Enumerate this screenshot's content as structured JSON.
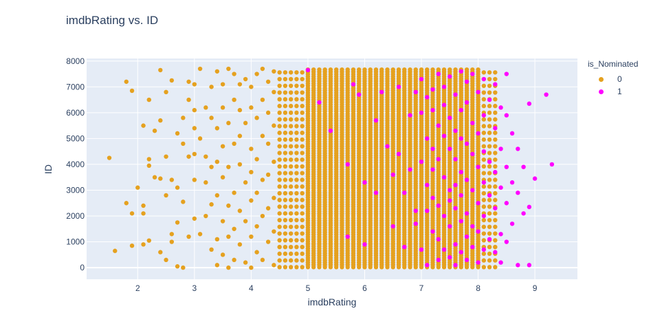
{
  "chart_data": {
    "type": "scatter",
    "title": "imdbRating vs. ID",
    "xlabel": "imdbRating",
    "ylabel": "ID",
    "xlim": [
      1.1,
      9.75
    ],
    "ylim": [
      -450,
      8100
    ],
    "x_ticks": [
      2,
      3,
      4,
      5,
      6,
      7,
      8,
      9
    ],
    "y_ticks": [
      0,
      1000,
      2000,
      3000,
      4000,
      5000,
      6000,
      7000,
      8000
    ],
    "grid": true,
    "legend_title": "is_Nominated",
    "legend_position": "top-right",
    "series": [
      {
        "name": "0",
        "color": "#E5A11F",
        "note_points": "dense band 4.5-8.3 plus sparse low-rating points",
        "points": [
          [
            1.5,
            4250
          ],
          [
            1.6,
            650
          ],
          [
            1.8,
            2500
          ],
          [
            1.8,
            7200
          ],
          [
            1.9,
            6850
          ],
          [
            1.9,
            2100
          ],
          [
            1.9,
            850
          ],
          [
            2.0,
            3100
          ],
          [
            2.1,
            5500
          ],
          [
            2.1,
            2400
          ],
          [
            2.1,
            2100
          ],
          [
            2.1,
            900
          ],
          [
            2.2,
            4200
          ],
          [
            2.2,
            3950
          ],
          [
            2.2,
            1050
          ],
          [
            2.2,
            6500
          ],
          [
            2.3,
            5300
          ],
          [
            2.3,
            3500
          ],
          [
            2.4,
            7650
          ],
          [
            2.4,
            5700
          ],
          [
            2.4,
            3450
          ],
          [
            2.4,
            600
          ],
          [
            2.5,
            6800
          ],
          [
            2.5,
            4300
          ],
          [
            2.5,
            2800
          ],
          [
            2.5,
            300
          ],
          [
            2.6,
            7250
          ],
          [
            2.6,
            3400
          ],
          [
            2.6,
            1300
          ],
          [
            2.6,
            1000
          ],
          [
            2.7,
            5200
          ],
          [
            2.7,
            3100
          ],
          [
            2.7,
            1750
          ],
          [
            2.7,
            50
          ],
          [
            2.8,
            5800
          ],
          [
            2.8,
            4800
          ],
          [
            2.8,
            2550
          ],
          [
            2.8,
            0
          ],
          [
            2.9,
            7200
          ],
          [
            2.9,
            6500
          ],
          [
            2.9,
            4300
          ],
          [
            2.9,
            1200
          ],
          [
            3.0,
            7100
          ],
          [
            3.0,
            6100
          ],
          [
            3.0,
            5400
          ],
          [
            3.0,
            4400
          ],
          [
            3.0,
            3400
          ],
          [
            3.0,
            1900
          ],
          [
            3.1,
            7700
          ],
          [
            3.1,
            5000
          ],
          [
            3.1,
            1300
          ],
          [
            3.2,
            6200
          ],
          [
            3.2,
            4300
          ],
          [
            3.2,
            3300
          ],
          [
            3.2,
            2000
          ],
          [
            3.3,
            7000
          ],
          [
            3.3,
            5800
          ],
          [
            3.3,
            3900
          ],
          [
            3.3,
            2450
          ],
          [
            3.3,
            700
          ],
          [
            3.4,
            7600
          ],
          [
            3.4,
            5400
          ],
          [
            3.4,
            4100
          ],
          [
            3.4,
            2800
          ],
          [
            3.4,
            1100
          ],
          [
            3.4,
            100
          ],
          [
            3.5,
            7100
          ],
          [
            3.5,
            6200
          ],
          [
            3.5,
            4700
          ],
          [
            3.5,
            3500
          ],
          [
            3.5,
            1800
          ],
          [
            3.5,
            500
          ],
          [
            3.6,
            7700
          ],
          [
            3.6,
            5600
          ],
          [
            3.6,
            3900
          ],
          [
            3.6,
            2400
          ],
          [
            3.6,
            1200
          ],
          [
            3.6,
            0
          ],
          [
            3.7,
            7500
          ],
          [
            3.7,
            6500
          ],
          [
            3.7,
            4800
          ],
          [
            3.7,
            2900
          ],
          [
            3.7,
            1500
          ],
          [
            3.7,
            300
          ],
          [
            3.8,
            7100
          ],
          [
            3.8,
            6100
          ],
          [
            3.8,
            5100
          ],
          [
            3.8,
            4000
          ],
          [
            3.8,
            2200
          ],
          [
            3.8,
            900
          ],
          [
            3.9,
            7300
          ],
          [
            3.9,
            5600
          ],
          [
            3.9,
            3300
          ],
          [
            3.9,
            1800
          ],
          [
            3.9,
            200
          ],
          [
            4.0,
            7000
          ],
          [
            4.0,
            6200
          ],
          [
            4.0,
            4600
          ],
          [
            4.0,
            3700
          ],
          [
            4.0,
            2600
          ],
          [
            4.0,
            1200
          ],
          [
            4.0,
            0
          ],
          [
            4.1,
            7500
          ],
          [
            4.1,
            5800
          ],
          [
            4.1,
            4200
          ],
          [
            4.1,
            2900
          ],
          [
            4.1,
            1600
          ],
          [
            4.1,
            600
          ],
          [
            4.2,
            7700
          ],
          [
            4.2,
            6500
          ],
          [
            4.2,
            5100
          ],
          [
            4.2,
            3400
          ],
          [
            4.2,
            2000
          ],
          [
            4.2,
            300
          ],
          [
            4.3,
            7200
          ],
          [
            4.3,
            6000
          ],
          [
            4.3,
            4800
          ],
          [
            4.3,
            3600
          ],
          [
            4.3,
            2300
          ],
          [
            4.3,
            1000
          ],
          [
            4.4,
            7600
          ],
          [
            4.4,
            6800
          ],
          [
            4.4,
            5500
          ],
          [
            4.4,
            4100
          ],
          [
            4.4,
            2700
          ],
          [
            4.4,
            1400
          ],
          [
            4.4,
            100
          ]
        ]
      },
      {
        "name": "1",
        "color": "#FF00FF",
        "points": [
          [
            5.0,
            7650
          ],
          [
            5.2,
            6400
          ],
          [
            5.4,
            5300
          ],
          [
            5.7,
            4000
          ],
          [
            5.7,
            1200
          ],
          [
            5.8,
            7100
          ],
          [
            5.9,
            6700
          ],
          [
            6.0,
            900
          ],
          [
            6.0,
            3300
          ],
          [
            6.2,
            5700
          ],
          [
            6.2,
            2900
          ],
          [
            6.3,
            6800
          ],
          [
            6.4,
            4700
          ],
          [
            6.5,
            3600
          ],
          [
            6.5,
            1600
          ],
          [
            6.6,
            7000
          ],
          [
            6.6,
            4400
          ],
          [
            6.7,
            2900
          ],
          [
            6.7,
            800
          ],
          [
            6.8,
            5900
          ],
          [
            6.8,
            3800
          ],
          [
            6.9,
            6800
          ],
          [
            6.9,
            2200
          ],
          [
            6.9,
            1700
          ],
          [
            7.0,
            7300
          ],
          [
            7.0,
            6000
          ],
          [
            7.0,
            4100
          ],
          [
            7.0,
            700
          ],
          [
            7.1,
            6600
          ],
          [
            7.1,
            5000
          ],
          [
            7.1,
            3200
          ],
          [
            7.1,
            2200
          ],
          [
            7.1,
            100
          ],
          [
            7.2,
            6900
          ],
          [
            7.2,
            6100
          ],
          [
            7.2,
            4600
          ],
          [
            7.2,
            3800
          ],
          [
            7.2,
            2700
          ],
          [
            7.2,
            1400
          ],
          [
            7.3,
            7500
          ],
          [
            7.3,
            5500
          ],
          [
            7.3,
            4200
          ],
          [
            7.3,
            2400
          ],
          [
            7.3,
            1100
          ],
          [
            7.3,
            300
          ],
          [
            7.4,
            7000
          ],
          [
            7.4,
            6300
          ],
          [
            7.4,
            5100
          ],
          [
            7.4,
            3500
          ],
          [
            7.4,
            2000
          ],
          [
            7.4,
            700
          ],
          [
            7.5,
            7400
          ],
          [
            7.5,
            5800
          ],
          [
            7.5,
            4600
          ],
          [
            7.5,
            3000
          ],
          [
            7.5,
            2600
          ],
          [
            7.5,
            1600
          ],
          [
            7.5,
            400
          ],
          [
            7.6,
            6700
          ],
          [
            7.6,
            5300
          ],
          [
            7.6,
            4200
          ],
          [
            7.6,
            3200
          ],
          [
            7.6,
            2300
          ],
          [
            7.6,
            900
          ],
          [
            7.6,
            100
          ],
          [
            7.7,
            7600
          ],
          [
            7.7,
            6100
          ],
          [
            7.7,
            5000
          ],
          [
            7.7,
            3700
          ],
          [
            7.7,
            2800
          ],
          [
            7.7,
            1800
          ],
          [
            7.7,
            600
          ],
          [
            7.8,
            7200
          ],
          [
            7.8,
            6400
          ],
          [
            7.8,
            4800
          ],
          [
            7.8,
            3400
          ],
          [
            7.8,
            2100
          ],
          [
            7.8,
            1200
          ],
          [
            7.8,
            300
          ],
          [
            7.9,
            7500
          ],
          [
            7.9,
            5600
          ],
          [
            7.9,
            4400
          ],
          [
            7.9,
            3000
          ],
          [
            7.9,
            1600
          ],
          [
            7.9,
            800
          ],
          [
            8.0,
            6800
          ],
          [
            8.0,
            5200
          ],
          [
            8.0,
            3900
          ],
          [
            8.0,
            2500
          ],
          [
            8.0,
            1400
          ],
          [
            8.0,
            200
          ],
          [
            8.1,
            7300
          ],
          [
            8.1,
            5900
          ],
          [
            8.1,
            4500
          ],
          [
            8.1,
            3300
          ],
          [
            8.1,
            2000
          ],
          [
            8.1,
            700
          ],
          [
            8.2,
            6500
          ],
          [
            8.2,
            4100
          ],
          [
            8.2,
            2800
          ],
          [
            8.2,
            1100
          ],
          [
            8.3,
            7100
          ],
          [
            8.3,
            5400
          ],
          [
            8.3,
            3700
          ],
          [
            8.3,
            2300
          ],
          [
            8.3,
            600
          ],
          [
            8.4,
            6200
          ],
          [
            8.4,
            4600
          ],
          [
            8.4,
            3100
          ],
          [
            8.4,
            1300
          ],
          [
            8.4,
            200
          ],
          [
            8.5,
            7500
          ],
          [
            8.5,
            5900
          ],
          [
            8.5,
            3900
          ],
          [
            8.5,
            2500
          ],
          [
            8.5,
            1000
          ],
          [
            8.6,
            5200
          ],
          [
            8.6,
            3300
          ],
          [
            8.6,
            1700
          ],
          [
            8.7,
            4600
          ],
          [
            8.7,
            2900
          ],
          [
            8.7,
            100
          ],
          [
            8.8,
            3900
          ],
          [
            8.8,
            2100
          ],
          [
            8.9,
            6350
          ],
          [
            8.9,
            2350
          ],
          [
            8.9,
            100
          ],
          [
            9.0,
            3450
          ],
          [
            9.2,
            6700
          ],
          [
            9.3,
            4000
          ]
        ]
      }
    ]
  }
}
